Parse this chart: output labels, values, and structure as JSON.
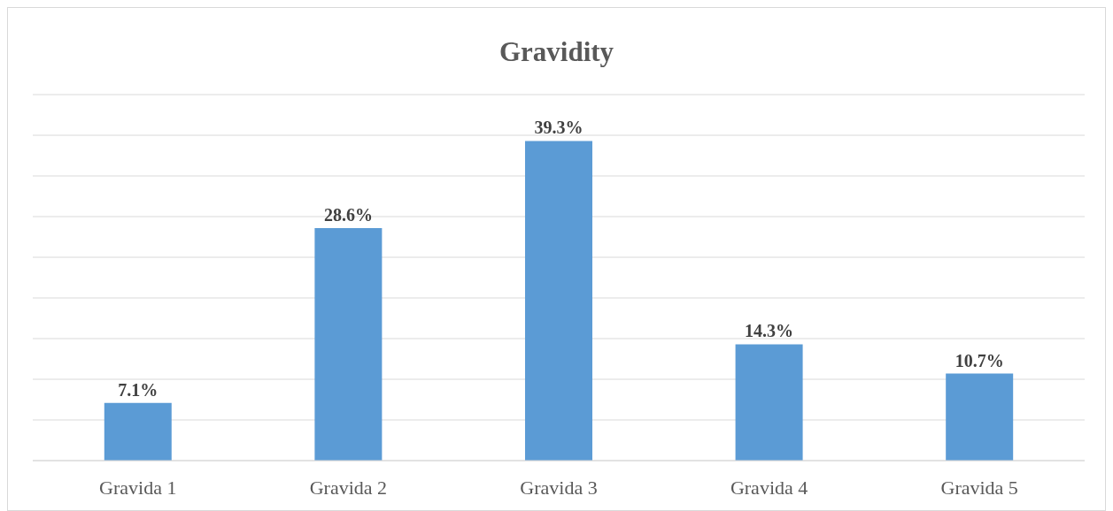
{
  "chart_data": {
    "type": "bar",
    "title": "Gravidity",
    "categories": [
      "Gravida 1",
      "Gravida 2",
      "Gravida 3",
      "Gravida 4",
      "Gravida 5"
    ],
    "values": [
      7.1,
      28.6,
      39.3,
      14.3,
      10.7
    ],
    "value_labels": [
      "7.1%",
      "28.6%",
      "39.3%",
      "14.3%",
      "10.7%"
    ],
    "color": "#5b9bd5",
    "ylim": [
      0,
      45
    ],
    "yticks": [
      {
        "value": 0,
        "label": null
      },
      {
        "value": 5,
        "label": null
      },
      {
        "value": 10,
        "label": null
      },
      {
        "value": 15,
        "label": null
      },
      {
        "value": 20,
        "label": null
      },
      {
        "value": 25,
        "label": null
      },
      {
        "value": 30,
        "label": null
      },
      {
        "value": 35,
        "label": null
      },
      {
        "value": 40,
        "label": null
      },
      {
        "value": 45,
        "label": null
      }
    ],
    "tick_labels": "x",
    "grid": "y"
  }
}
